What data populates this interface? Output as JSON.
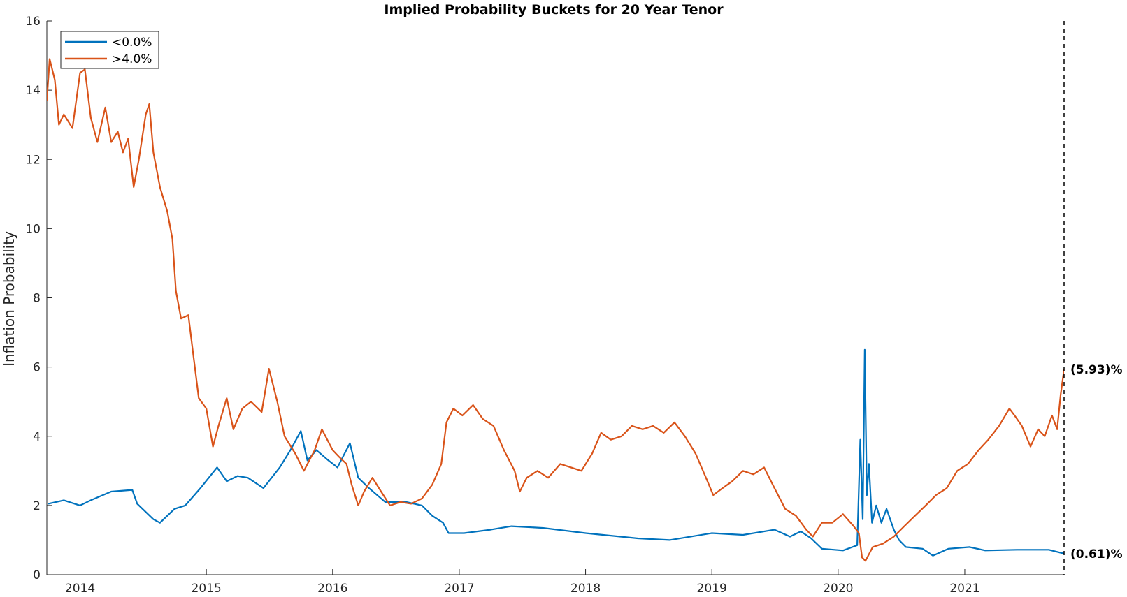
{
  "chart_data": {
    "type": "line",
    "title": "Implied Probability Buckets for 20 Year Tenor",
    "xlabel": "",
    "ylabel": "Inflation Probability",
    "xlim": [
      "2013-09-27",
      "2021-10-15"
    ],
    "ylim": [
      0,
      16
    ],
    "x_ticks": [
      "2014",
      "2015",
      "2016",
      "2017",
      "2018",
      "2019",
      "2020",
      "2021"
    ],
    "y_ticks": [
      "0",
      "2",
      "4",
      "6",
      "8",
      "10",
      "12",
      "14",
      "16"
    ],
    "grid": false,
    "legend": {
      "position": "top-left",
      "entries": [
        "<0.0%",
        ">4.0%"
      ]
    },
    "reference_line": {
      "date": "2021-10-15",
      "style": "dashed"
    },
    "series": [
      {
        "name": "<0.0%",
        "color": "#0072BD",
        "end_label": "(0.61)%",
        "points": [
          [
            "2013-10-01",
            2.05
          ],
          [
            "2013-11-15",
            2.15
          ],
          [
            "2014-01-01",
            2.0
          ],
          [
            "2014-02-01",
            2.15
          ],
          [
            "2014-04-01",
            2.4
          ],
          [
            "2014-06-01",
            2.45
          ],
          [
            "2014-06-15",
            2.05
          ],
          [
            "2014-08-01",
            1.6
          ],
          [
            "2014-08-20",
            1.5
          ],
          [
            "2014-10-01",
            1.9
          ],
          [
            "2014-11-01",
            2.0
          ],
          [
            "2014-12-15",
            2.5
          ],
          [
            "2015-02-01",
            3.1
          ],
          [
            "2015-03-01",
            2.7
          ],
          [
            "2015-04-01",
            2.85
          ],
          [
            "2015-05-01",
            2.8
          ],
          [
            "2015-06-15",
            2.5
          ],
          [
            "2015-08-01",
            3.1
          ],
          [
            "2015-09-01",
            3.6
          ],
          [
            "2015-10-01",
            4.15
          ],
          [
            "2015-10-20",
            3.3
          ],
          [
            "2015-11-15",
            3.6
          ],
          [
            "2015-12-20",
            3.3
          ],
          [
            "2016-01-15",
            3.1
          ],
          [
            "2016-02-20",
            3.8
          ],
          [
            "2016-03-15",
            2.8
          ],
          [
            "2016-04-15",
            2.5
          ],
          [
            "2016-06-01",
            2.1
          ],
          [
            "2016-08-01",
            2.1
          ],
          [
            "2016-09-15",
            2.0
          ],
          [
            "2016-10-15",
            1.7
          ],
          [
            "2016-11-15",
            1.5
          ],
          [
            "2016-12-01",
            1.2
          ],
          [
            "2017-01-15",
            1.2
          ],
          [
            "2017-04-01",
            1.3
          ],
          [
            "2017-06-01",
            1.4
          ],
          [
            "2017-09-01",
            1.35
          ],
          [
            "2018-01-01",
            1.2
          ],
          [
            "2018-06-01",
            1.05
          ],
          [
            "2018-09-01",
            1.0
          ],
          [
            "2019-01-01",
            1.2
          ],
          [
            "2019-04-01",
            1.15
          ],
          [
            "2019-07-01",
            1.3
          ],
          [
            "2019-08-15",
            1.1
          ],
          [
            "2019-09-15",
            1.25
          ],
          [
            "2019-10-15",
            1.05
          ],
          [
            "2019-11-15",
            0.75
          ],
          [
            "2020-01-15",
            0.7
          ],
          [
            "2020-02-25",
            0.85
          ],
          [
            "2020-03-05",
            3.9
          ],
          [
            "2020-03-12",
            1.6
          ],
          [
            "2020-03-18",
            6.5
          ],
          [
            "2020-03-24",
            2.3
          ],
          [
            "2020-03-30",
            3.2
          ],
          [
            "2020-04-08",
            1.5
          ],
          [
            "2020-04-20",
            2.0
          ],
          [
            "2020-05-05",
            1.5
          ],
          [
            "2020-05-20",
            1.9
          ],
          [
            "2020-06-10",
            1.3
          ],
          [
            "2020-06-25",
            1.0
          ],
          [
            "2020-07-15",
            0.8
          ],
          [
            "2020-09-01",
            0.75
          ],
          [
            "2020-10-01",
            0.55
          ],
          [
            "2020-11-15",
            0.75
          ],
          [
            "2021-01-15",
            0.8
          ],
          [
            "2021-03-01",
            0.7
          ],
          [
            "2021-06-01",
            0.72
          ],
          [
            "2021-09-01",
            0.72
          ],
          [
            "2021-10-15",
            0.61
          ]
        ]
      },
      {
        "name": ">4.0%",
        "color": "#D95319",
        "end_label": "(5.93)%",
        "points": [
          [
            "2013-09-27",
            13.7
          ],
          [
            "2013-10-05",
            14.9
          ],
          [
            "2013-10-20",
            14.3
          ],
          [
            "2013-11-01",
            13.0
          ],
          [
            "2013-11-15",
            13.3
          ],
          [
            "2013-12-10",
            12.9
          ],
          [
            "2014-01-01",
            14.5
          ],
          [
            "2014-01-15",
            14.6
          ],
          [
            "2014-02-01",
            13.2
          ],
          [
            "2014-02-20",
            12.5
          ],
          [
            "2014-03-15",
            13.5
          ],
          [
            "2014-04-01",
            12.5
          ],
          [
            "2014-04-20",
            12.8
          ],
          [
            "2014-05-05",
            12.2
          ],
          [
            "2014-05-20",
            12.6
          ],
          [
            "2014-06-05",
            11.2
          ],
          [
            "2014-06-20",
            12.0
          ],
          [
            "2014-07-10",
            13.3
          ],
          [
            "2014-07-20",
            13.6
          ],
          [
            "2014-08-01",
            12.2
          ],
          [
            "2014-08-20",
            11.2
          ],
          [
            "2014-09-10",
            10.5
          ],
          [
            "2014-09-25",
            9.7
          ],
          [
            "2014-10-05",
            8.2
          ],
          [
            "2014-10-20",
            7.4
          ],
          [
            "2014-11-10",
            7.5
          ],
          [
            "2014-11-25",
            6.3
          ],
          [
            "2014-12-10",
            5.1
          ],
          [
            "2015-01-01",
            4.8
          ],
          [
            "2015-01-20",
            3.7
          ],
          [
            "2015-02-05",
            4.3
          ],
          [
            "2015-03-01",
            5.1
          ],
          [
            "2015-03-20",
            4.2
          ],
          [
            "2015-04-15",
            4.8
          ],
          [
            "2015-05-10",
            5.0
          ],
          [
            "2015-06-10",
            4.7
          ],
          [
            "2015-07-01",
            5.95
          ],
          [
            "2015-07-25",
            5.0
          ],
          [
            "2015-08-15",
            4.0
          ],
          [
            "2015-09-15",
            3.5
          ],
          [
            "2015-10-10",
            3.0
          ],
          [
            "2015-11-10",
            3.6
          ],
          [
            "2015-12-01",
            4.2
          ],
          [
            "2016-01-01",
            3.6
          ],
          [
            "2016-01-20",
            3.4
          ],
          [
            "2016-02-10",
            3.2
          ],
          [
            "2016-02-25",
            2.6
          ],
          [
            "2016-03-15",
            2.0
          ],
          [
            "2016-04-01",
            2.4
          ],
          [
            "2016-04-25",
            2.8
          ],
          [
            "2016-05-20",
            2.4
          ],
          [
            "2016-06-15",
            2.0
          ],
          [
            "2016-07-15",
            2.1
          ],
          [
            "2016-08-15",
            2.05
          ],
          [
            "2016-09-15",
            2.2
          ],
          [
            "2016-10-15",
            2.6
          ],
          [
            "2016-11-10",
            3.2
          ],
          [
            "2016-11-25",
            4.4
          ],
          [
            "2016-12-15",
            4.8
          ],
          [
            "2017-01-10",
            4.6
          ],
          [
            "2017-02-10",
            4.9
          ],
          [
            "2017-03-10",
            4.5
          ],
          [
            "2017-04-10",
            4.3
          ],
          [
            "2017-05-10",
            3.6
          ],
          [
            "2017-06-10",
            3.0
          ],
          [
            "2017-06-25",
            2.4
          ],
          [
            "2017-07-15",
            2.8
          ],
          [
            "2017-08-15",
            3.0
          ],
          [
            "2017-09-15",
            2.8
          ],
          [
            "2017-10-20",
            3.2
          ],
          [
            "2017-11-20",
            3.1
          ],
          [
            "2017-12-20",
            3.0
          ],
          [
            "2018-01-20",
            3.5
          ],
          [
            "2018-02-15",
            4.1
          ],
          [
            "2018-03-15",
            3.9
          ],
          [
            "2018-04-15",
            4.0
          ],
          [
            "2018-05-15",
            4.3
          ],
          [
            "2018-06-15",
            4.2
          ],
          [
            "2018-07-15",
            4.3
          ],
          [
            "2018-08-15",
            4.1
          ],
          [
            "2018-09-15",
            4.4
          ],
          [
            "2018-10-15",
            4.0
          ],
          [
            "2018-11-15",
            3.5
          ],
          [
            "2018-12-15",
            2.8
          ],
          [
            "2019-01-05",
            2.3
          ],
          [
            "2019-02-01",
            2.5
          ],
          [
            "2019-03-01",
            2.7
          ],
          [
            "2019-04-01",
            3.0
          ],
          [
            "2019-05-01",
            2.9
          ],
          [
            "2019-06-01",
            3.1
          ],
          [
            "2019-07-01",
            2.5
          ],
          [
            "2019-08-01",
            1.9
          ],
          [
            "2019-09-01",
            1.7
          ],
          [
            "2019-10-01",
            1.3
          ],
          [
            "2019-10-20",
            1.1
          ],
          [
            "2019-11-15",
            1.5
          ],
          [
            "2019-12-15",
            1.5
          ],
          [
            "2020-01-15",
            1.75
          ],
          [
            "2020-02-15",
            1.4
          ],
          [
            "2020-03-01",
            1.2
          ],
          [
            "2020-03-10",
            0.5
          ],
          [
            "2020-03-20",
            0.4
          ],
          [
            "2020-04-10",
            0.8
          ],
          [
            "2020-05-10",
            0.9
          ],
          [
            "2020-06-10",
            1.1
          ],
          [
            "2020-07-10",
            1.4
          ],
          [
            "2020-08-10",
            1.7
          ],
          [
            "2020-09-10",
            2.0
          ],
          [
            "2020-10-10",
            2.3
          ],
          [
            "2020-11-10",
            2.5
          ],
          [
            "2020-12-10",
            3.0
          ],
          [
            "2021-01-10",
            3.2
          ],
          [
            "2021-02-10",
            3.6
          ],
          [
            "2021-03-10",
            3.9
          ],
          [
            "2021-04-10",
            4.3
          ],
          [
            "2021-05-10",
            4.8
          ],
          [
            "2021-05-25",
            4.6
          ],
          [
            "2021-06-15",
            4.3
          ],
          [
            "2021-07-10",
            3.7
          ],
          [
            "2021-08-01",
            4.2
          ],
          [
            "2021-08-20",
            4.0
          ],
          [
            "2021-09-10",
            4.6
          ],
          [
            "2021-09-25",
            4.2
          ],
          [
            "2021-10-05",
            5.2
          ],
          [
            "2021-10-15",
            5.93
          ]
        ]
      }
    ]
  }
}
